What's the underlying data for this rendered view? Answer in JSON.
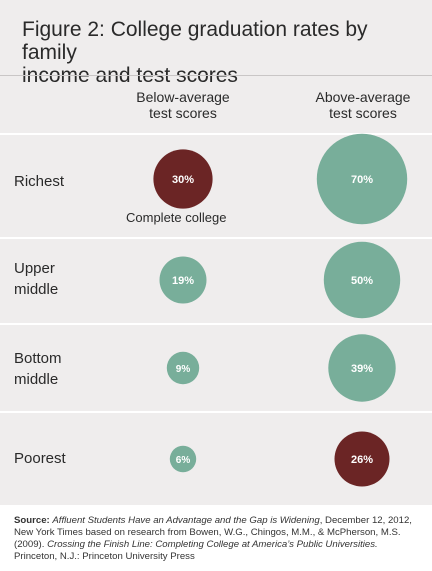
{
  "figure": {
    "title_line1": "Figure 2: College graduation rates by family",
    "title_line2": "income and test scores"
  },
  "colors": {
    "highlight": "#6b2525",
    "standard": "#78ae9a",
    "panel": "#efeded"
  },
  "chart_data": {
    "type": "bubble",
    "title": "Figure 2: College graduation rates by family income and test scores",
    "columns": [
      {
        "line1": "Below-average",
        "line2": "test scores"
      },
      {
        "line1": "Above-average",
        "line2": "test scores"
      }
    ],
    "rows": [
      {
        "line1": "Richest",
        "line2": ""
      },
      {
        "line1": "Upper",
        "line2": "middle"
      },
      {
        "line1": "Bottom",
        "line2": "middle"
      },
      {
        "line1": "Poorest",
        "line2": ""
      }
    ],
    "values": [
      [
        30,
        70
      ],
      [
        19,
        50
      ],
      [
        9,
        39
      ],
      [
        6,
        26
      ]
    ],
    "labels": [
      [
        "30%",
        "70%"
      ],
      [
        "19%",
        "50%"
      ],
      [
        "9%",
        "39%"
      ],
      [
        "6%",
        "26%"
      ]
    ],
    "highlighted": [
      [
        0,
        0
      ],
      [
        3,
        1
      ]
    ],
    "annotation": "Complete  college",
    "unit": "%"
  },
  "source": {
    "label": "Source:",
    "line1_italic": "Affluent Students Have an Advantage and the Gap is Widening",
    "line1_rest": ", December 12, 2012, New York Times based on research from Bowen, W.G., Chingos, M.M., & McPherson, M.S. (2009). ",
    "book_italic": "Crossing the Finish Line: Completing College at America’s Public Universities.",
    "publisher": " Princeton, N.J.: Princeton University Press"
  }
}
